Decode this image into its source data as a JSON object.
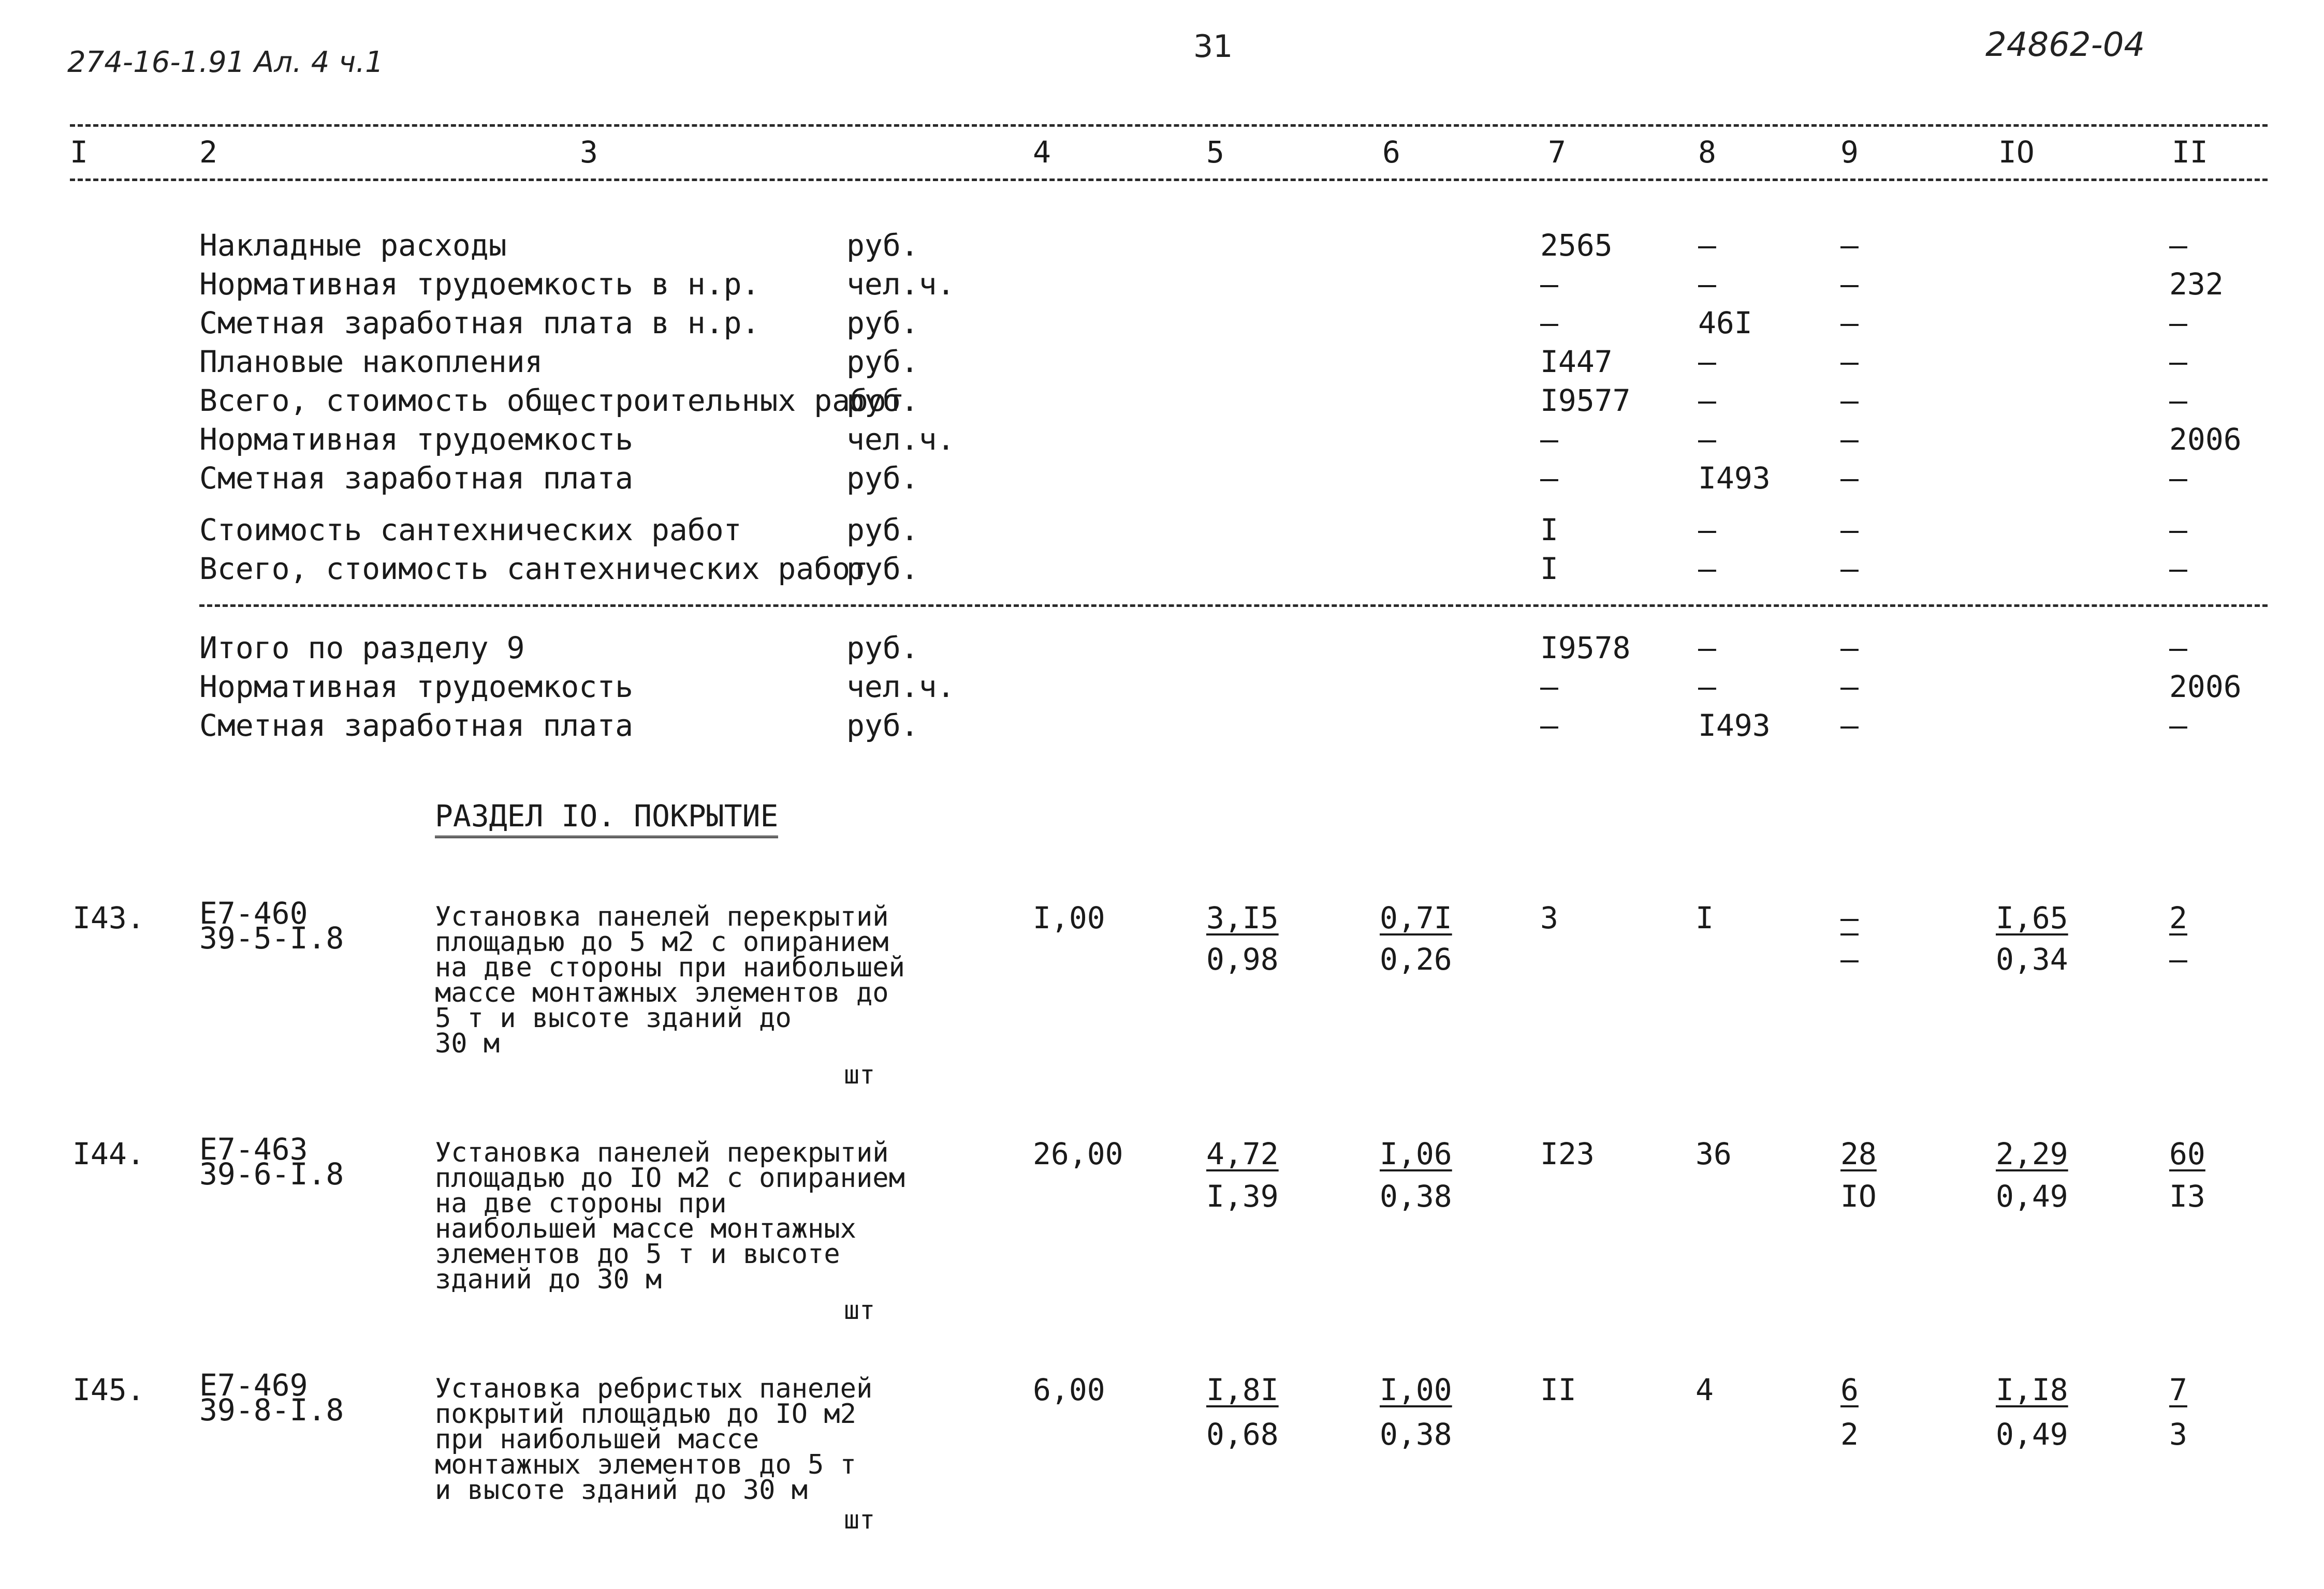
{
  "header": {
    "left_note": "274-16-1.91 Ал. 4 ч.1",
    "page_number": "31",
    "doc_number": "24862-04"
  },
  "columns": [
    "I",
    "2",
    "3",
    "4",
    "5",
    "6",
    "7",
    "8",
    "9",
    "IO",
    "II"
  ],
  "summary_group_1": [
    {
      "name": "Накладные расходы",
      "unit": "руб.",
      "c7": "2565",
      "c8": "–",
      "c9": "–",
      "c11": "–"
    },
    {
      "name": "Нормативная трудоемкость в н.р.",
      "unit": "чел.ч.",
      "c7": "–",
      "c8": "–",
      "c9": "–",
      "c11": "232"
    },
    {
      "name": "Сметная заработная плата в н.р.",
      "unit": "руб.",
      "c7": "–",
      "c8": "46I",
      "c9": "–",
      "c11": "–"
    },
    {
      "name": "Плановые накопления",
      "unit": "руб.",
      "c7": "I447",
      "c8": "–",
      "c9": "–",
      "c11": "–"
    },
    {
      "name": "Всего, стоимость общестроительных работ",
      "unit": "руб.",
      "c7": "I9577",
      "c8": "–",
      "c9": "–",
      "c11": "–"
    },
    {
      "name": "Нормативная трудоемкость",
      "unit": "чел.ч.",
      "c7": "–",
      "c8": "–",
      "c9": "–",
      "c11": "2006"
    },
    {
      "name": "Сметная заработная плата",
      "unit": "руб.",
      "c7": "–",
      "c8": "I493",
      "c9": "–",
      "c11": "–"
    },
    {
      "name": "Стоимость сантехнических работ",
      "unit": "руб.",
      "c7": "I",
      "c8": "–",
      "c9": "–",
      "c11": "–"
    },
    {
      "name": "Всего, стоимость сантехнических работ",
      "unit": "руб.",
      "c7": "I",
      "c8": "–",
      "c9": "–",
      "c11": "–"
    }
  ],
  "summary_group_2": [
    {
      "name": "Итого по разделу 9",
      "unit": "руб.",
      "c7": "I9578",
      "c8": "–",
      "c9": "–",
      "c11": "–"
    },
    {
      "name": "Нормативная трудоемкость",
      "unit": "чел.ч.",
      "c7": "–",
      "c8": "–",
      "c9": "–",
      "c11": "2006"
    },
    {
      "name": "Сметная заработная плата",
      "unit": "руб.",
      "c7": "–",
      "c8": "I493",
      "c9": "–",
      "c11": "–"
    }
  ],
  "section_title": "РАЗДЕЛ IO.  ПОКРЫТИЕ",
  "items": [
    {
      "num": "I43.",
      "code1": "Е7-460",
      "code2": "39-5-I.8",
      "desc": "Установка панелей перекрытий\nплощадью до 5 м2 с опиранием\nна две стороны при наибольшей\nмассе монтажных элементов до\n5 т и высоте зданий до\n30 м",
      "unit": "шт",
      "qty": "I,00",
      "c5_top": "3,I5",
      "c5_bot": "0,98",
      "c6_top": "0,7I",
      "c6_bot": "0,26",
      "c7": "3",
      "c8": "I",
      "c9_top": "–",
      "c9_bot": "–",
      "c10_top": "I,65",
      "c10_bot": "0,34",
      "c11_top": "2",
      "c11_bot": "–"
    },
    {
      "num": "I44.",
      "code1": "Е7-463",
      "code2": "39-6-I.8",
      "desc": "Установка панелей перекрытий\nплощадью до IO м2 с опиранием\nна две стороны при\nнаибольшей массе монтажных\nэлементов до 5 т и высоте\nзданий до 30 м",
      "unit": "шт",
      "qty": "26,00",
      "c5_top": "4,72",
      "c5_bot": "I,39",
      "c6_top": "I,06",
      "c6_bot": "0,38",
      "c7": "I23",
      "c8": "36",
      "c9_top": "28",
      "c9_bot": "IO",
      "c10_top": "2,29",
      "c10_bot": "0,49",
      "c11_top": "60",
      "c11_bot": "I3"
    },
    {
      "num": "I45.",
      "code1": "Е7-469",
      "code2": "39-8-I.8",
      "desc": "Установка ребристых панелей\nпокрытий площадью до IO м2\nпри наибольшей массе\nмонтажных элементов до 5 т\nи высоте зданий до 30 м",
      "unit": "шт",
      "qty": "6,00",
      "c5_top": "I,8I",
      "c5_bot": "0,68",
      "c6_top": "I,00",
      "c6_bot": "0,38",
      "c7": "II",
      "c8": "4",
      "c9_top": "6",
      "c9_bot": "2",
      "c10_top": "I,I8",
      "c10_bot": "0,49",
      "c11_top": "7",
      "c11_bot": "3"
    }
  ]
}
